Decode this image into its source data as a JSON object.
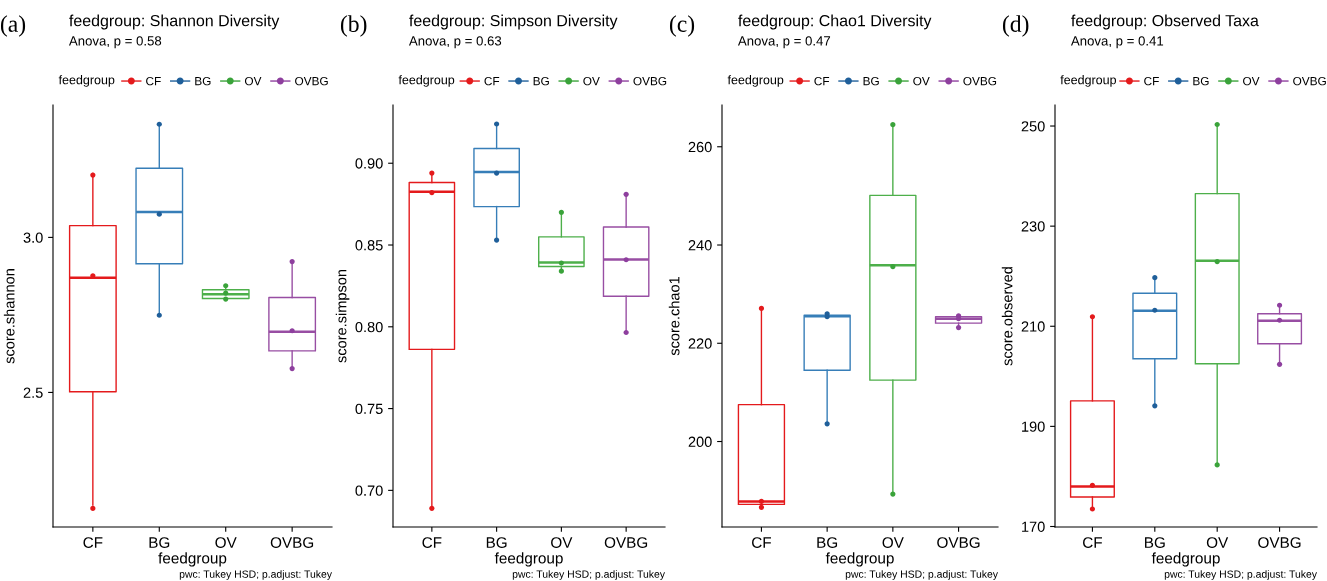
{
  "chart_data": [
    {
      "type": "box",
      "title": "feedgroup: Shannon Diversity",
      "subtitle": "Anova, p = 0.58",
      "xlabel": "feedgroup",
      "ylabel": "score.shannon",
      "legend_title": "feedgroup",
      "legend": "top",
      "grid": false,
      "marker": "circle",
      "annotations": [
        "(a)",
        "pwc: Tukey HSD; p.adjust: Tukey"
      ],
      "categories": [
        "CF",
        "BG",
        "OV",
        "OVBG"
      ],
      "colors": [
        "#e41a1c",
        "#377eb8",
        "#4daf4a",
        "#984ea3"
      ],
      "ylim": [
        2.066,
        3.427
      ],
      "yticks": [
        {
          "value": 2.5,
          "label": "2.5"
        },
        {
          "value": 3.0,
          "label": "3.0"
        }
      ],
      "boxes": [
        {
          "low": 2.137,
          "q1": 2.502,
          "median": 2.87,
          "q3": 3.038,
          "high": 3.206
        },
        {
          "low": 2.752,
          "q1": 2.915,
          "median": 3.082,
          "q3": 3.223,
          "high": 3.365
        },
        {
          "low": 2.801,
          "q1": 2.803,
          "median": 2.817,
          "q3": 2.831,
          "high": 2.844
        },
        {
          "low": 2.577,
          "q1": 2.634,
          "median": 2.696,
          "q3": 2.806,
          "high": 2.919
        }
      ],
      "series": [
        {
          "name": "CF",
          "type": "scatter",
          "color": "#e41a1c",
          "x": [
            "CF",
            "CF",
            "CF"
          ],
          "values": [
            3.201,
            2.876,
            2.126
          ]
        },
        {
          "name": "BG",
          "type": "scatter",
          "color": "#1f5f9a",
          "x": [
            "BG",
            "BG",
            "BG"
          ],
          "values": [
            3.365,
            3.075,
            2.749
          ]
        },
        {
          "name": "OV",
          "type": "scatter",
          "color": "#3aa33a",
          "x": [
            "OV",
            "OV",
            "OV"
          ],
          "values": [
            2.844,
            2.82,
            2.801
          ]
        },
        {
          "name": "OVBG",
          "type": "scatter",
          "color": "#8e3f9e",
          "x": [
            "OVBG",
            "OVBG",
            "OVBG"
          ],
          "values": [
            2.922,
            2.699,
            2.577
          ]
        }
      ]
    },
    {
      "type": "box",
      "title": "feedgroup: Simpson Diversity",
      "subtitle": "Anova, p = 0.63",
      "xlabel": "feedgroup",
      "ylabel": "score.simpson",
      "legend_title": "feedgroup",
      "legend": "top",
      "grid": false,
      "marker": "circle",
      "annotations": [
        "(b)",
        "pwc: Tukey HSD; p.adjust: Tukey"
      ],
      "categories": [
        "CF",
        "BG",
        "OV",
        "OVBG"
      ],
      "colors": [
        "#e41a1c",
        "#377eb8",
        "#4daf4a",
        "#984ea3"
      ],
      "ylim": [
        0.6776,
        0.9356
      ],
      "yticks": [
        {
          "value": 0.7,
          "label": "0.70"
        },
        {
          "value": 0.75,
          "label": "0.75"
        },
        {
          "value": 0.8,
          "label": "0.80"
        },
        {
          "value": 0.85,
          "label": "0.85"
        },
        {
          "value": 0.9,
          "label": "0.90"
        }
      ],
      "boxes": [
        {
          "low": 0.6898,
          "q1": 0.7862,
          "median": 0.8825,
          "q3": 0.8882,
          "high": 0.8945
        },
        {
          "low": 0.8536,
          "q1": 0.8735,
          "median": 0.8947,
          "q3": 0.909,
          "high": 0.924
        },
        {
          "low": 0.8344,
          "q1": 0.8369,
          "median": 0.8393,
          "q3": 0.855,
          "high": 0.87
        },
        {
          "low": 0.7965,
          "q1": 0.8187,
          "median": 0.8411,
          "q3": 0.861,
          "high": 0.881
        }
      ],
      "series": [
        {
          "name": "CF",
          "type": "scatter",
          "color": "#e41a1c",
          "x": [
            "CF",
            "CF",
            "CF"
          ],
          "values": [
            0.894,
            0.882,
            0.689
          ]
        },
        {
          "name": "BG",
          "type": "scatter",
          "color": "#1f5f9a",
          "x": [
            "BG",
            "BG",
            "BG"
          ],
          "values": [
            0.924,
            0.894,
            0.853
          ]
        },
        {
          "name": "OV",
          "type": "scatter",
          "color": "#3aa33a",
          "x": [
            "OV",
            "OV",
            "OV"
          ],
          "values": [
            0.87,
            0.839,
            0.834
          ]
        },
        {
          "name": "OVBG",
          "type": "scatter",
          "color": "#8e3f9e",
          "x": [
            "OVBG",
            "OVBG",
            "OVBG"
          ],
          "values": [
            0.881,
            0.841,
            0.7965
          ]
        }
      ]
    },
    {
      "type": "box",
      "title": "feedgroup: Chao1 Diversity",
      "subtitle": "Anova, p = 0.47",
      "xlabel": "feedgroup",
      "ylabel": "score.chao1",
      "legend_title": "feedgroup",
      "legend": "top",
      "grid": false,
      "marker": "circle",
      "annotations": [
        "(c)",
        "pwc: Tukey HSD; p.adjust: Tukey"
      ],
      "categories": [
        "CF",
        "BG",
        "OV",
        "OVBG"
      ],
      "colors": [
        "#e41a1c",
        "#377eb8",
        "#4daf4a",
        "#984ea3"
      ],
      "ylim": [
        182.6,
        268.5
      ],
      "yticks": [
        200,
        220,
        240,
        260
      ],
      "boxes": [
        {
          "low": 186.6,
          "q1": 187.2,
          "median": 187.8,
          "q3": 207.5,
          "high": 227.1
        },
        {
          "low": 203.7,
          "q1": 214.5,
          "median": 225.5,
          "q3": 225.7,
          "high": 226.0
        },
        {
          "low": 189.3,
          "q1": 212.5,
          "median": 235.9,
          "q3": 250.1,
          "high": 264.5
        },
        {
          "low": 223.2,
          "q1": 224.1,
          "median": 225.0,
          "q3": 225.4,
          "high": 225.6
        }
      ],
      "series": [
        {
          "name": "CF",
          "type": "scatter",
          "color": "#e41a1c",
          "x": [
            "CF",
            "CF",
            "CF"
          ],
          "values": [
            227.1,
            187.8,
            186.6
          ]
        },
        {
          "name": "BG",
          "type": "scatter",
          "color": "#1f5f9a",
          "x": [
            "BG",
            "BG",
            "BG"
          ],
          "values": [
            226.0,
            225.4,
            203.6
          ]
        },
        {
          "name": "OV",
          "type": "scatter",
          "color": "#3aa33a",
          "x": [
            "OV",
            "OV",
            "OV"
          ],
          "values": [
            264.5,
            235.6,
            189.3
          ]
        },
        {
          "name": "OVBG",
          "type": "scatter",
          "color": "#8e3f9e",
          "x": [
            "OVBG",
            "OVBG",
            "OVBG"
          ],
          "values": [
            225.6,
            225.0,
            223.2
          ]
        }
      ]
    },
    {
      "type": "box",
      "title": "feedgroup: Observed Taxa",
      "subtitle": "Anova, p = 0.41",
      "xlabel": "feedgroup",
      "ylabel": "score.observed",
      "legend_title": "feedgroup",
      "legend": "top",
      "grid": false,
      "marker": "circle",
      "annotations": [
        "(d)",
        "pwc: Tukey HSD; p.adjust: Tukey"
      ],
      "categories": [
        "CF",
        "BG",
        "OV",
        "OVBG"
      ],
      "colors": [
        "#e41a1c",
        "#377eb8",
        "#4daf4a",
        "#984ea3"
      ],
      "ylim": [
        169.9,
        254.2
      ],
      "yticks": [
        170,
        190,
        210,
        230,
        250
      ],
      "boxes": [
        {
          "low": 174.0,
          "q1": 175.9,
          "median": 178.0,
          "q3": 195.1,
          "high": 212.0
        },
        {
          "low": 194.2,
          "q1": 203.5,
          "median": 213.1,
          "q3": 216.6,
          "high": 219.7
        },
        {
          "low": 182.3,
          "q1": 202.5,
          "median": 223.1,
          "q3": 236.5,
          "high": 250.0
        },
        {
          "low": 202.4,
          "q1": 206.5,
          "median": 211.1,
          "q3": 212.5,
          "high": 214.0
        }
      ],
      "series": [
        {
          "name": "CF",
          "type": "scatter",
          "color": "#e41a1c",
          "x": [
            "CF",
            "CF",
            "CF"
          ],
          "values": [
            211.9,
            178.2,
            173.5
          ]
        },
        {
          "name": "BG",
          "type": "scatter",
          "color": "#1f5f9a",
          "x": [
            "BG",
            "BG",
            "BG"
          ],
          "values": [
            219.7,
            213.2,
            194.1
          ]
        },
        {
          "name": "OV",
          "type": "scatter",
          "color": "#3aa33a",
          "x": [
            "OV",
            "OV",
            "OV"
          ],
          "values": [
            250.3,
            222.9,
            182.3
          ]
        },
        {
          "name": "OVBG",
          "type": "scatter",
          "color": "#8e3f9e",
          "x": [
            "OVBG",
            "OVBG",
            "OVBG"
          ],
          "values": [
            214.2,
            211.2,
            202.4
          ]
        }
      ]
    }
  ]
}
